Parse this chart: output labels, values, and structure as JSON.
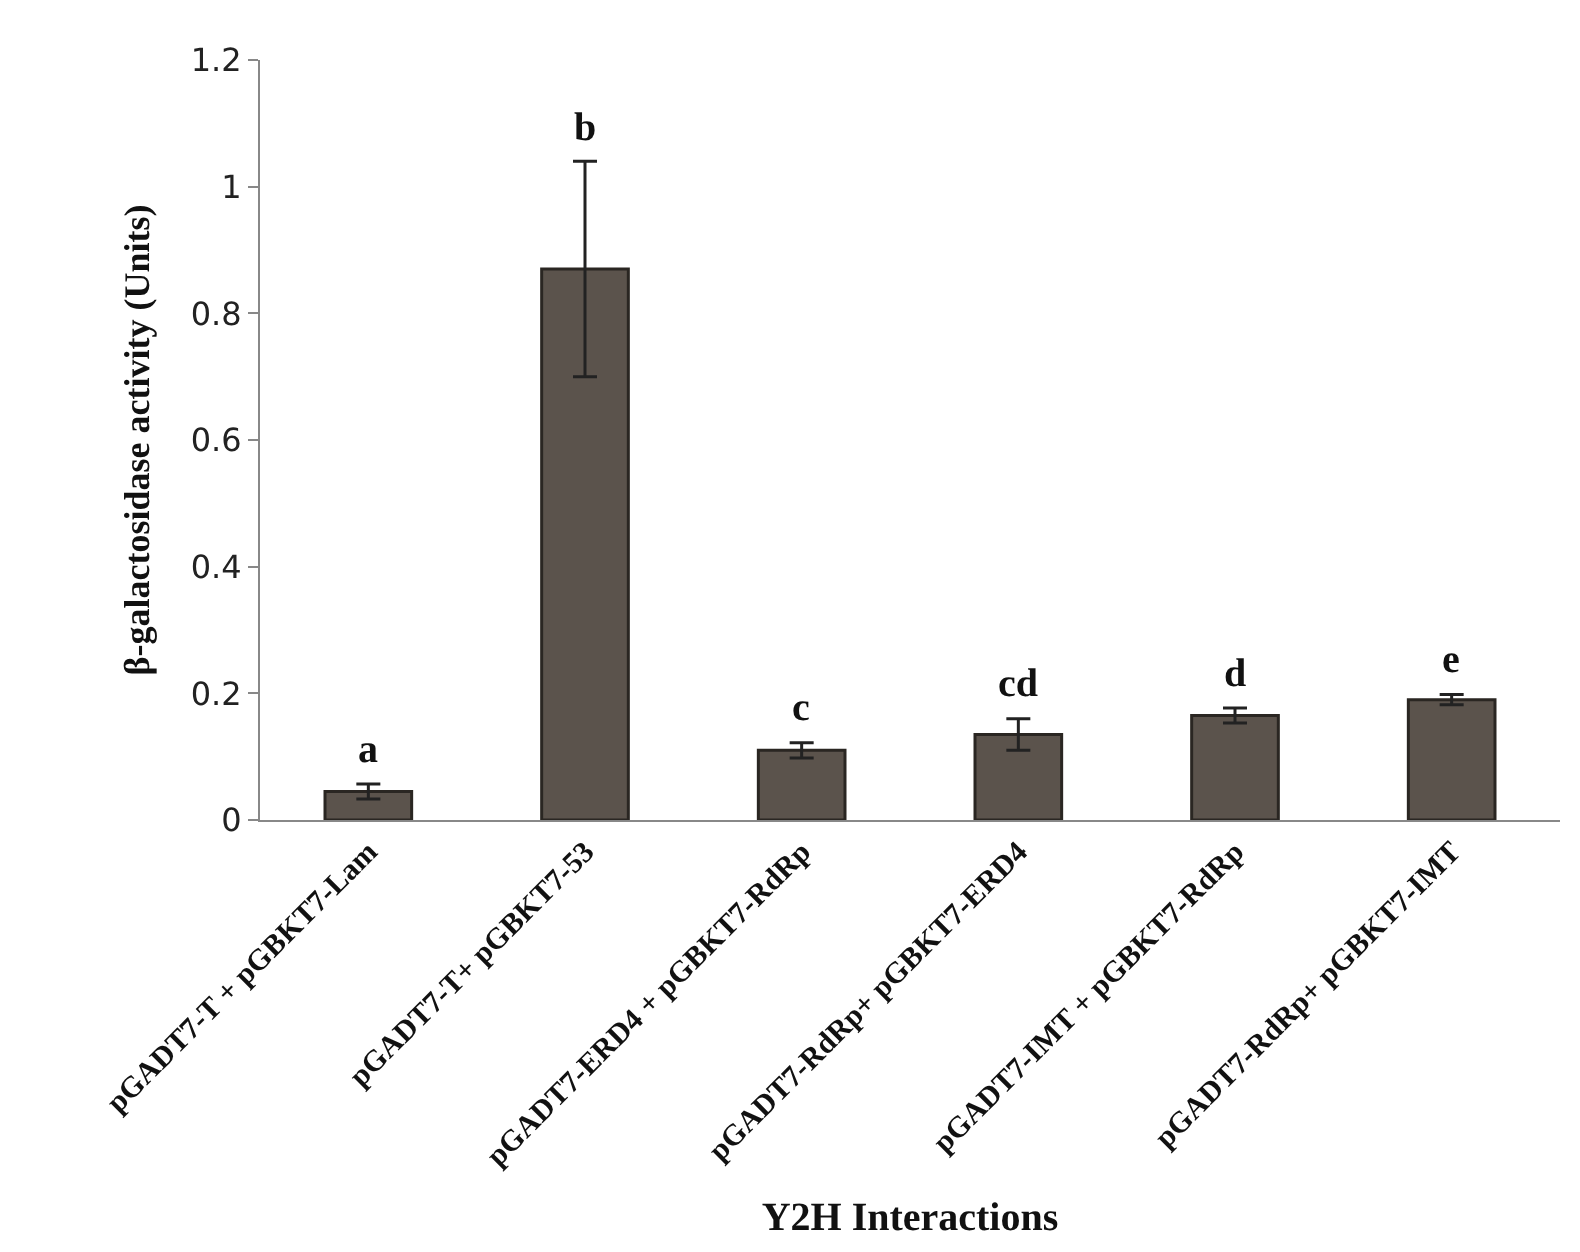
{
  "chart_data": {
    "type": "bar",
    "xlabel": "Y2H Interactions",
    "ylabel": "β-galactosidase activity (Units)",
    "categories": [
      "pGADT7-T + pGBKT7-Lam",
      "pGADT7-T+ pGBKT7-53",
      "pGADT7-ERD4 + pGBKT7-RdRp",
      "pGADT7-RdRp+ pGBKT7-ERD4",
      "pGADT7-IMT + pGBKT7-RdRp",
      "pGADT7-RdRp+ pGBKT7-IMT"
    ],
    "values": [
      0.045,
      0.87,
      0.11,
      0.135,
      0.165,
      0.19
    ],
    "errors": [
      0.012,
      [
        0.7,
        1.04
      ],
      0.012,
      0.025,
      0.012,
      0.008
    ],
    "color": "#5b534c",
    "ylim": [
      0,
      1.2
    ],
    "yticks": [
      0,
      0.2,
      0.4,
      0.6,
      0.8,
      1,
      1.2
    ],
    "annotations": [
      {
        "text": "a",
        "x": "pGADT7-T + pGBKT7-Lam",
        "y": 0.057
      },
      {
        "text": "b",
        "x": "pGADT7-T+ pGBKT7-53",
        "y": 1.04
      },
      {
        "text": "c",
        "x": "pGADT7-ERD4 + pGBKT7-RdRp",
        "y": 0.122
      },
      {
        "text": "cd",
        "x": "pGADT7-RdRp+ pGBKT7-ERD4",
        "y": 0.16
      },
      {
        "text": "d",
        "x": "pGADT7-IMT + pGBKT7-RdRp",
        "y": 0.177
      },
      {
        "text": "e",
        "x": "pGADT7-RdRp+ pGBKT7-IMT",
        "y": 0.198
      }
    ]
  }
}
